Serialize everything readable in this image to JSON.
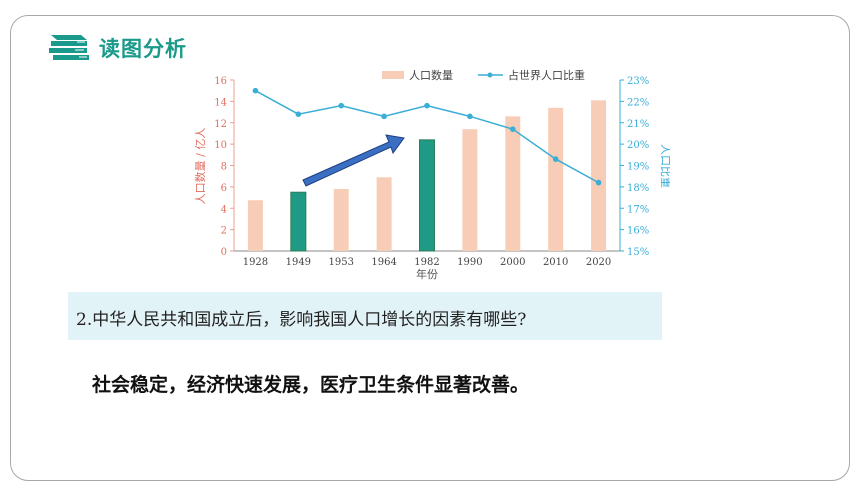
{
  "header": {
    "title": "读图分析",
    "icon": "books-stack-icon",
    "accent_color": "#1a9a8a"
  },
  "question": {
    "text": "2.中华人民共和国成立后，影响我国人口增长的因素有哪些?"
  },
  "answer": {
    "text": "社会稳定，经济快速发展，医疗卫生条件显著改善。"
  },
  "chart_data": {
    "type": "bar",
    "categories": [
      "1928",
      "1949",
      "1953",
      "1964",
      "1982",
      "1990",
      "2000",
      "2010",
      "2020"
    ],
    "xlabel": "年份",
    "ylabel": "人口数量 / 亿人",
    "y2label": "人口比重",
    "ylim": [
      0,
      16
    ],
    "yticks": [
      "0",
      "2",
      "4",
      "6",
      "8",
      "10",
      "12",
      "14",
      "16"
    ],
    "y2lim": [
      15,
      23
    ],
    "y2ticks": [
      "15%",
      "16%",
      "17%",
      "18%",
      "19%",
      "20%",
      "21%",
      "22%",
      "23%"
    ],
    "series": [
      {
        "name": "人口数量",
        "kind": "bar",
        "color": "#f8cdb8",
        "values": [
          4.75,
          5.5,
          5.8,
          6.9,
          10.4,
          11.4,
          12.6,
          13.4,
          14.1
        ]
      },
      {
        "name": "占世界人口比重",
        "kind": "line",
        "axis": "right",
        "color": "#3aaed6",
        "values": [
          22.5,
          21.4,
          21.8,
          21.3,
          21.8,
          21.3,
          20.7,
          19.3,
          18.2
        ]
      }
    ],
    "highlighted_bars": [
      "1949",
      "1982"
    ],
    "highlight_color": "#1f9a84",
    "legend_position": "top-right",
    "grid": false,
    "annotation": {
      "type": "arrow",
      "from": "1949",
      "to": "1982",
      "color": "#3a6fc4"
    }
  }
}
